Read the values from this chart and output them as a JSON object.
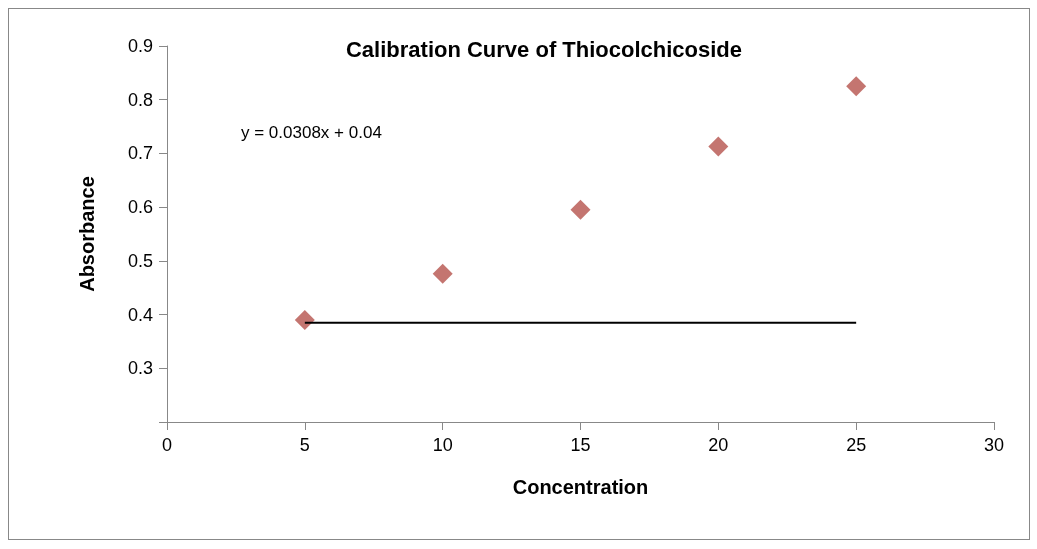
{
  "chart_data": {
    "type": "scatter",
    "title": "Calibration Curve of Thiocolchicoside",
    "xlabel": "Concentration",
    "ylabel": "Absorbance",
    "annotations": [
      "y = 0.0308x + 0.04"
    ],
    "xlim": [
      0,
      30
    ],
    "xticks": [
      0,
      5,
      10,
      15,
      20,
      25,
      30
    ],
    "ylim": [
      0.2,
      0.9
    ],
    "yticks": [
      {
        "value": 0.2,
        "label": null
      },
      0.3,
      0.4,
      0.5,
      0.6,
      0.7,
      0.8,
      0.9
    ],
    "grid": false,
    "marker": "diamond",
    "series": [
      {
        "color": "#b5524c",
        "x": [
          5,
          10,
          15,
          20,
          25
        ],
        "values": [
          0.39,
          0.476,
          0.595,
          0.713,
          0.825
        ]
      },
      {
        "type": "line",
        "color": "#000000",
        "x": [
          5,
          25
        ],
        "values": [
          0.385,
          0.385
        ],
        "line_style": "solid",
        "marker": "none"
      }
    ]
  }
}
